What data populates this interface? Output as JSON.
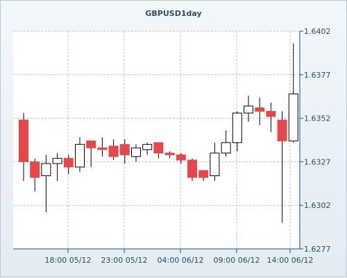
{
  "chart_data": {
    "type": "candlestick",
    "title": "GBPUSD1day",
    "ylim": [
      1.6277,
      1.6402
    ],
    "y_ticks": [
      "1.6402",
      "1.6377",
      "1.6352",
      "1.6327",
      "1.6302",
      "1.6277"
    ],
    "x_ticks": [
      "18:00 05/12",
      "23:00 05/12",
      "04:00 06/12",
      "09:00 06/12",
      "14:00 06/12"
    ],
    "grid": true,
    "colors": {
      "up": "#ffffff",
      "down": "#e8474a",
      "wick": "#000000",
      "grid": "#9fcfd6",
      "axis": "#1f4e6b"
    },
    "candles": [
      {
        "open": 1.6351,
        "high": 1.6355,
        "low": 1.6316,
        "close": 1.6327
      },
      {
        "open": 1.6327,
        "high": 1.6329,
        "low": 1.631,
        "close": 1.6318
      },
      {
        "open": 1.6319,
        "high": 1.6331,
        "low": 1.6298,
        "close": 1.6326
      },
      {
        "open": 1.6326,
        "high": 1.6332,
        "low": 1.6316,
        "close": 1.6329
      },
      {
        "open": 1.6329,
        "high": 1.6331,
        "low": 1.632,
        "close": 1.6324
      },
      {
        "open": 1.6324,
        "high": 1.6341,
        "low": 1.6321,
        "close": 1.6337
      },
      {
        "open": 1.6339,
        "high": 1.6339,
        "low": 1.6324,
        "close": 1.6335
      },
      {
        "open": 1.6335,
        "high": 1.6341,
        "low": 1.633,
        "close": 1.6334
      },
      {
        "open": 1.6336,
        "high": 1.634,
        "low": 1.6328,
        "close": 1.633
      },
      {
        "open": 1.6337,
        "high": 1.634,
        "low": 1.6326,
        "close": 1.6331
      },
      {
        "open": 1.633,
        "high": 1.6337,
        "low": 1.6327,
        "close": 1.6335
      },
      {
        "open": 1.6334,
        "high": 1.6338,
        "low": 1.6331,
        "close": 1.6337
      },
      {
        "open": 1.6338,
        "high": 1.6338,
        "low": 1.6329,
        "close": 1.6332
      },
      {
        "open": 1.6332,
        "high": 1.6333,
        "low": 1.6329,
        "close": 1.6331
      },
      {
        "open": 1.6331,
        "high": 1.6332,
        "low": 1.6326,
        "close": 1.6328
      },
      {
        "open": 1.6328,
        "high": 1.6329,
        "low": 1.6316,
        "close": 1.6318
      },
      {
        "open": 1.6322,
        "high": 1.6322,
        "low": 1.6316,
        "close": 1.6318
      },
      {
        "open": 1.6319,
        "high": 1.6338,
        "low": 1.6316,
        "close": 1.6332
      },
      {
        "open": 1.6332,
        "high": 1.6345,
        "low": 1.633,
        "close": 1.6338
      },
      {
        "open": 1.6338,
        "high": 1.6356,
        "low": 1.6333,
        "close": 1.6355
      },
      {
        "open": 1.6355,
        "high": 1.6365,
        "low": 1.635,
        "close": 1.6359
      },
      {
        "open": 1.6358,
        "high": 1.6364,
        "low": 1.6348,
        "close": 1.6356
      },
      {
        "open": 1.6356,
        "high": 1.6361,
        "low": 1.6344,
        "close": 1.6353
      },
      {
        "open": 1.6351,
        "high": 1.6356,
        "low": 1.6292,
        "close": 1.6339
      },
      {
        "open": 1.6339,
        "high": 1.6395,
        "low": 1.6338,
        "close": 1.6366
      }
    ]
  }
}
